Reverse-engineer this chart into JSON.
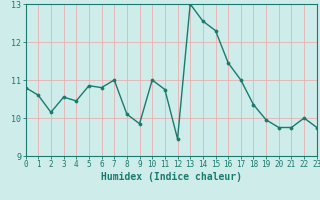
{
  "x": [
    0,
    1,
    2,
    3,
    4,
    5,
    6,
    7,
    8,
    9,
    10,
    11,
    12,
    13,
    14,
    15,
    16,
    17,
    18,
    19,
    20,
    21,
    22,
    23
  ],
  "y": [
    10.8,
    10.6,
    10.15,
    10.55,
    10.45,
    10.85,
    10.8,
    11.0,
    10.1,
    9.85,
    11.0,
    10.75,
    9.45,
    13.0,
    12.55,
    12.3,
    11.45,
    11.0,
    10.35,
    9.95,
    9.75,
    9.75,
    10.0,
    9.75
  ],
  "line_color": "#1a7a6e",
  "marker_color": "#1a7a6e",
  "bg_color": "#ceecea",
  "grid_color": "#e8b0b0",
  "axis_color": "#1a7a6e",
  "xlabel": "Humidex (Indice chaleur)",
  "xlim": [
    0,
    23
  ],
  "ylim": [
    9.0,
    13.0
  ],
  "yticks": [
    9,
    10,
    11,
    12,
    13
  ],
  "xticks": [
    0,
    1,
    2,
    3,
    4,
    5,
    6,
    7,
    8,
    9,
    10,
    11,
    12,
    13,
    14,
    15,
    16,
    17,
    18,
    19,
    20,
    21,
    22,
    23
  ],
  "tick_fontsize": 5.5,
  "xlabel_fontsize": 7.0
}
